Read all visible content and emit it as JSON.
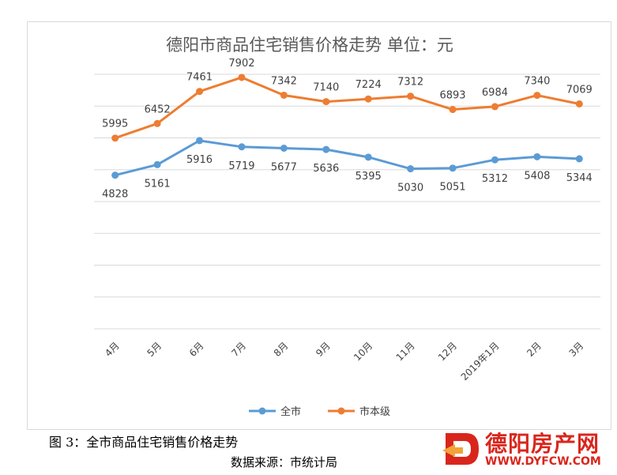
{
  "chart_data": {
    "type": "line",
    "title": "德阳市商品住宅销售价格走势   单位：元",
    "categories": [
      "4月",
      "5月",
      "6月",
      "7月",
      "8月",
      "9月",
      "10月",
      "11月",
      "12月",
      "2019年1月",
      "2月",
      "3月"
    ],
    "series": [
      {
        "name": "全市",
        "color": "#5b9bd5",
        "values": [
          4828,
          5161,
          5916,
          5719,
          5677,
          5636,
          5395,
          5030,
          5051,
          5312,
          5408,
          5344
        ]
      },
      {
        "name": "市本级",
        "color": "#ed7d31",
        "values": [
          5995,
          6452,
          7461,
          7902,
          7342,
          7140,
          7224,
          7312,
          6893,
          6984,
          7340,
          7069
        ]
      }
    ],
    "ylim": [
      0,
      8000
    ],
    "grid": true,
    "legend": "bottom",
    "xlabel": "",
    "ylabel": ""
  },
  "caption": {
    "figure": "图 3：全市商品住宅销售价格走势",
    "source": "数据来源：市统计局"
  },
  "watermark": {
    "name": "德阳房产网",
    "url": "WWW.DYFCW.COM"
  },
  "colors": {
    "grid": "#d9d9d9",
    "text": "#404040",
    "title": "#595959",
    "brand": "#d9261c"
  }
}
